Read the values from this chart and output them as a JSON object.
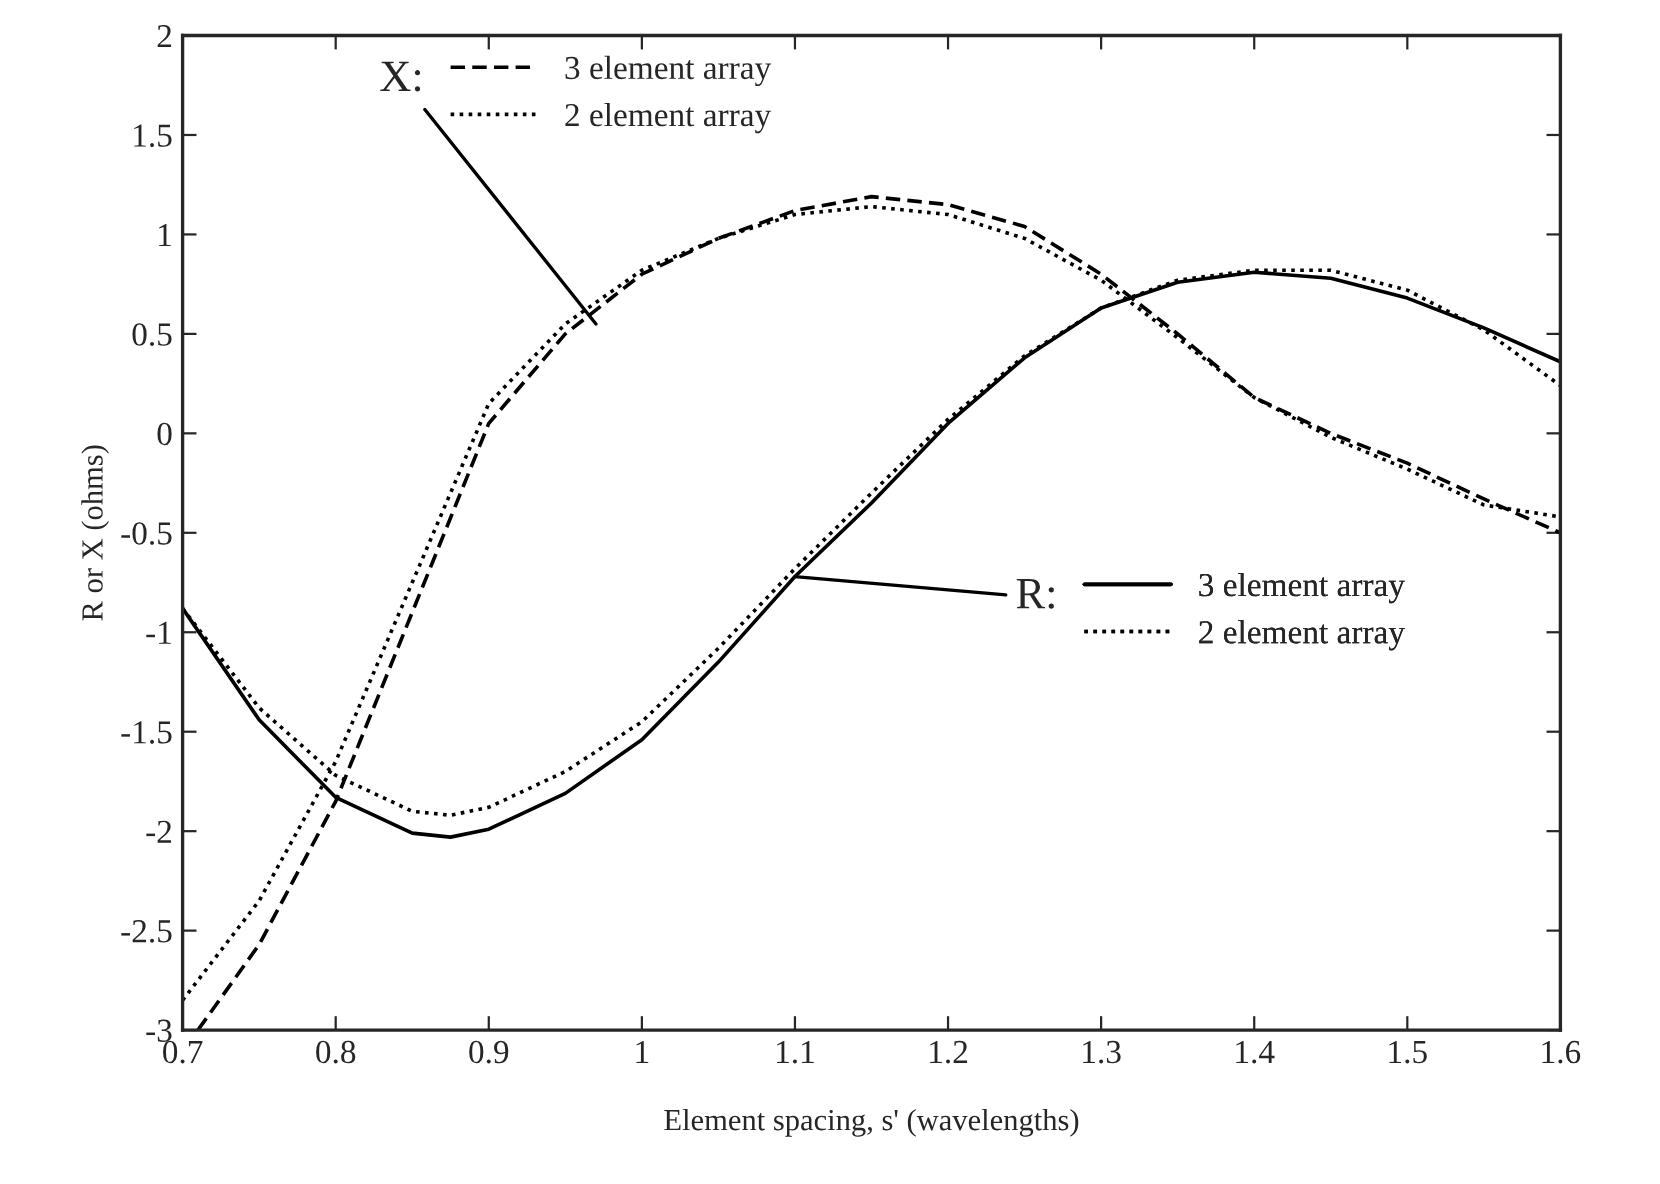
{
  "chart_data": {
    "type": "line",
    "xlabel": "Element spacing, s' (wavelengths)",
    "ylabel": "R or X (ohms)",
    "xlim": [
      0.7,
      1.6
    ],
    "xticks": [
      0.7,
      0.8,
      0.9,
      1,
      1.1,
      1.2,
      1.3,
      1.4,
      1.5,
      1.6
    ],
    "ylim": [
      -3,
      2
    ],
    "yticks": [
      -3,
      -2.5,
      -2,
      -1.5,
      -1,
      -0.5,
      0,
      0.5,
      1,
      1.5,
      2
    ],
    "grid": false,
    "legend": "top left",
    "annotations": [
      {
        "text": "X:",
        "x": 0.97,
        "y": 0.55
      },
      {
        "text": "R:",
        "x": 1.1,
        "y": -0.72
      }
    ],
    "series": [
      {
        "name": "3 element array",
        "color": "#000000",
        "line_style": "dashed",
        "x": [
          0.71,
          0.75,
          0.8,
          0.85,
          0.9,
          0.95,
          1.0,
          1.05,
          1.1,
          1.15,
          1.2,
          1.25,
          1.3,
          1.35,
          1.4,
          1.45,
          1.5,
          1.55,
          1.6
        ],
        "values": [
          -3.0,
          -2.57,
          -1.85,
          -0.9,
          0.05,
          0.5,
          0.8,
          0.98,
          1.12,
          1.19,
          1.15,
          1.04,
          0.8,
          0.5,
          0.18,
          0.0,
          -0.15,
          -0.33,
          -0.5
        ]
      },
      {
        "name": "2 element array",
        "color": "#000000",
        "line_style": "dotted",
        "x": [
          0.7,
          0.75,
          0.8,
          0.85,
          0.9,
          0.95,
          1.0,
          1.05,
          1.1,
          1.15,
          1.2,
          1.25,
          1.3,
          1.35,
          1.4,
          1.45,
          1.5,
          1.55,
          1.6
        ],
        "values": [
          -2.85,
          -2.35,
          -1.65,
          -0.75,
          0.15,
          0.55,
          0.82,
          0.98,
          1.1,
          1.14,
          1.1,
          0.98,
          0.77,
          0.48,
          0.18,
          -0.02,
          -0.18,
          -0.36,
          -0.42
        ]
      },
      {
        "name": "3 element array",
        "color": "#000000",
        "line_style": "solid",
        "x": [
          0.7,
          0.75,
          0.8,
          0.85,
          0.875,
          0.9,
          0.95,
          1.0,
          1.05,
          1.1,
          1.15,
          1.2,
          1.25,
          1.3,
          1.35,
          1.4,
          1.45,
          1.5,
          1.55,
          1.6
        ],
        "values": [
          -0.88,
          -1.44,
          -1.83,
          -2.01,
          -2.03,
          -1.99,
          -1.81,
          -1.54,
          -1.15,
          -0.72,
          -0.35,
          0.05,
          0.38,
          0.63,
          0.76,
          0.81,
          0.78,
          0.68,
          0.53,
          0.36
        ]
      },
      {
        "name": "2 element array",
        "color": "#000000",
        "line_style": "dotted",
        "x": [
          0.7,
          0.75,
          0.8,
          0.85,
          0.875,
          0.9,
          0.95,
          1.0,
          1.05,
          1.1,
          1.15,
          1.2,
          1.25,
          1.3,
          1.35,
          1.4,
          1.45,
          1.5,
          1.55,
          1.6
        ],
        "values": [
          -0.88,
          -1.38,
          -1.72,
          -1.9,
          -1.92,
          -1.88,
          -1.7,
          -1.45,
          -1.08,
          -0.68,
          -0.3,
          0.07,
          0.39,
          0.63,
          0.77,
          0.82,
          0.82,
          0.72,
          0.52,
          0.24
        ]
      }
    ]
  }
}
